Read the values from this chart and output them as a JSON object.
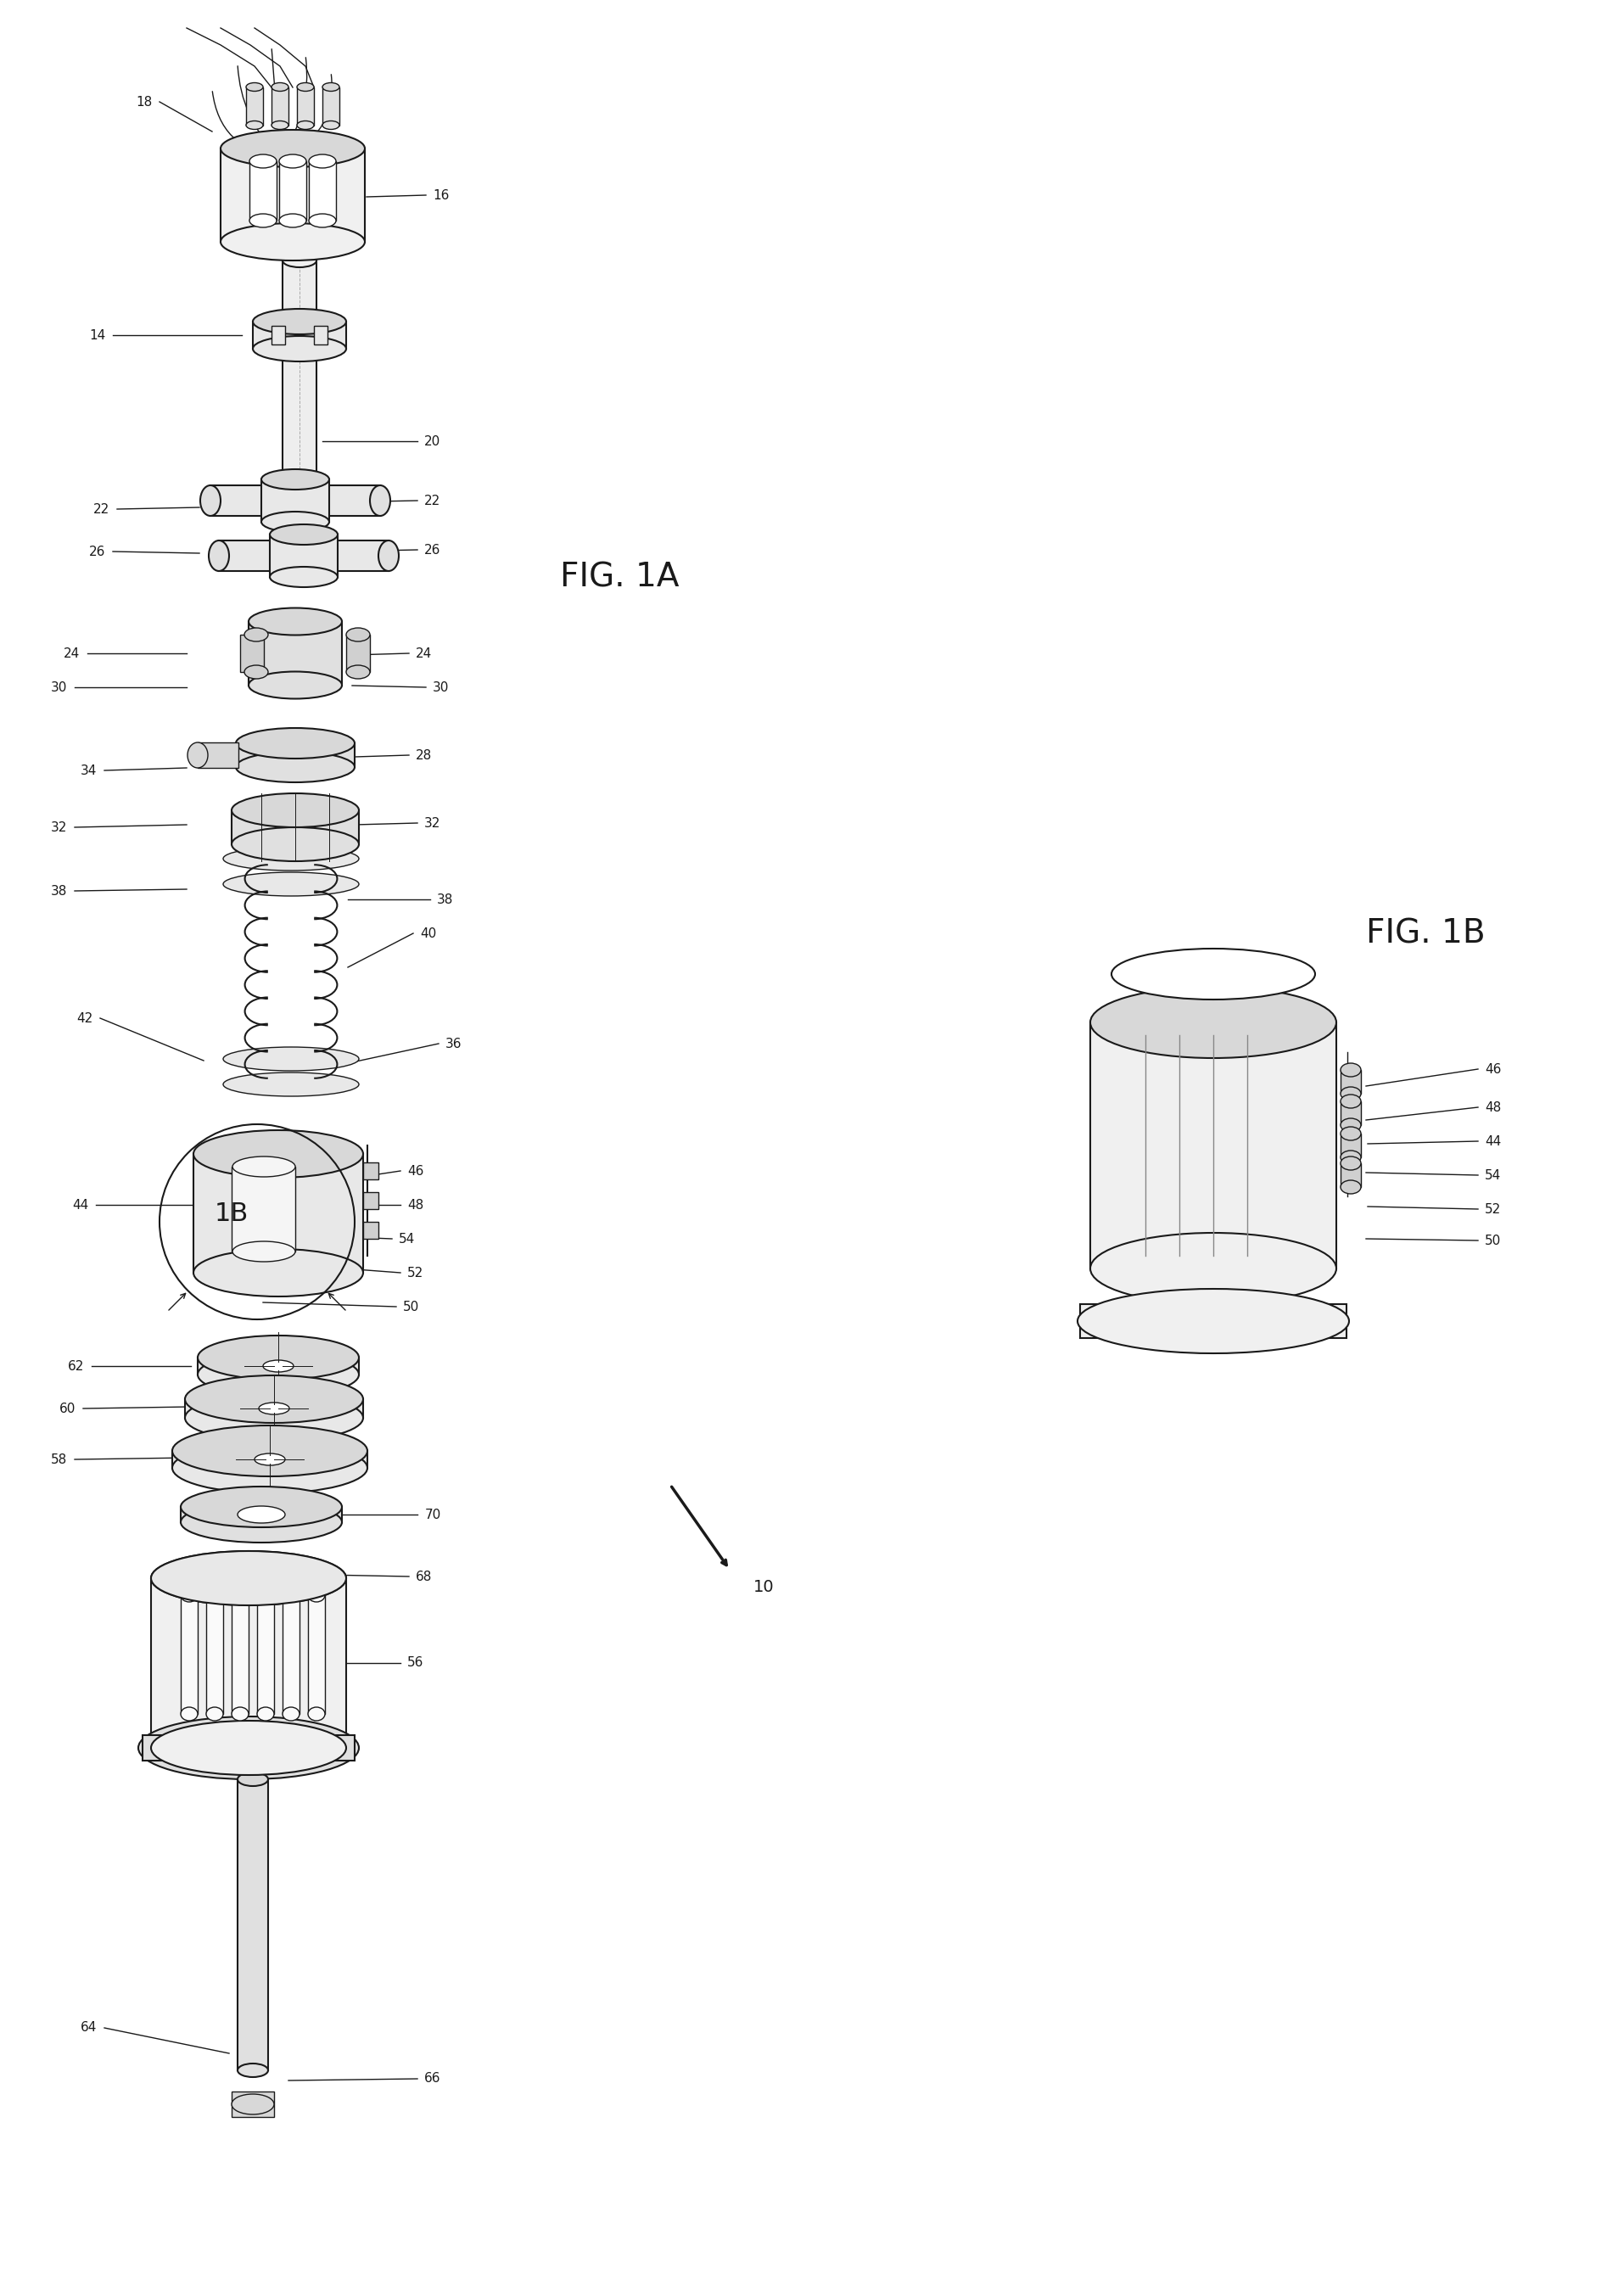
{
  "background_color": "#ffffff",
  "fig_width": 19.08,
  "fig_height": 27.06,
  "line_color": "#1a1a1a",
  "fig1a_label": "FIG. 1A",
  "fig1b_label": "FIG. 1B"
}
